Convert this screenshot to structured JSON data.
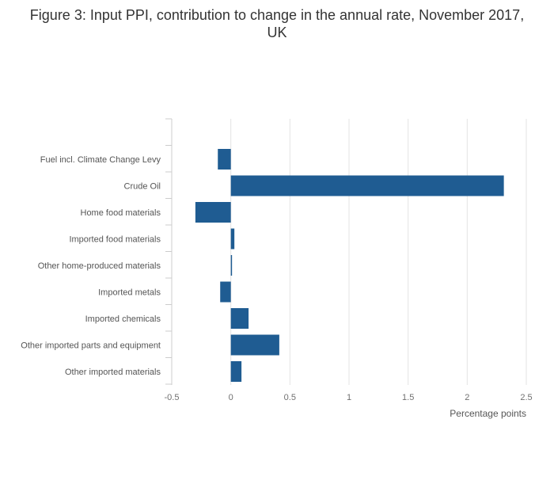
{
  "chart_data": {
    "type": "bar",
    "orientation": "horizontal",
    "title": "Figure 3: Input PPI, contribution to change in the annual rate, November 2017, UK",
    "xlabel": "Percentage points",
    "ylabel": "",
    "xlim": [
      -0.5,
      2.5
    ],
    "x_ticks": [
      "-0.5",
      "0",
      "0.5",
      "1",
      "1.5",
      "2",
      "2.5"
    ],
    "grid": true,
    "color": "#1f5c92",
    "categories": [
      "Fuel incl. Climate Change Levy",
      "Crude Oil",
      "Home food materials",
      "Imported food materials",
      "Other home-produced materials",
      "Imported metals",
      "Imported chemicals",
      "Other imported parts and equipment",
      "Other imported materials"
    ],
    "values": [
      -0.11,
      2.31,
      -0.3,
      0.03,
      0.01,
      -0.09,
      0.15,
      0.41,
      0.09
    ]
  }
}
